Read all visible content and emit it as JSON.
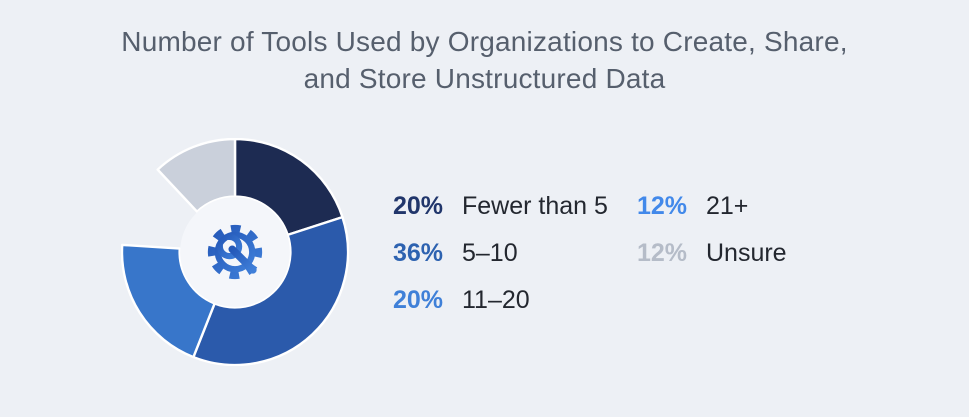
{
  "page": {
    "background_color": "#edf0f5"
  },
  "title": {
    "lines": [
      "Number of Tools Used by Organizations to Create, Share,",
      "and Store Unstructured Data"
    ],
    "color": "#565f6d"
  },
  "chart_data": {
    "type": "pie",
    "subtype": "donut",
    "title": "Number of Tools Used by Organizations to Create, Share, and Store Unstructured Data",
    "start_angle_deg": 0,
    "direction": "clockwise",
    "inner_radius_ratio": 0.49,
    "divider_color": "#ffffff",
    "inner_circle_color": "#f4f6fa",
    "center_icon": "gear-wrench-icon",
    "center_icon_color": "#2e6bcc",
    "legend_position": "right",
    "label_color": "#23272f",
    "slices": [
      {
        "label": "Fewer than 5",
        "percent": 20,
        "percent_label": "20%",
        "slice_color": "#1d2b52",
        "legend_color": "#21366b",
        "hidden": false
      },
      {
        "label": "5–10",
        "percent": 36,
        "percent_label": "36%",
        "slice_color": "#2b5aab",
        "legend_color": "#2d62b0",
        "hidden": false
      },
      {
        "label": "11–20",
        "percent": 20,
        "percent_label": "20%",
        "slice_color": "#3876ca",
        "legend_color": "#3f80d8",
        "hidden": false
      },
      {
        "label": "21+",
        "percent": 12,
        "percent_label": "12%",
        "slice_color": "#edf0f5",
        "legend_color": "#4289ea",
        "hidden": true
      },
      {
        "label": "Unsure",
        "percent": 12,
        "percent_label": "12%",
        "slice_color": "#cad0db",
        "legend_color": "#b5bcc8",
        "hidden": false
      }
    ]
  }
}
